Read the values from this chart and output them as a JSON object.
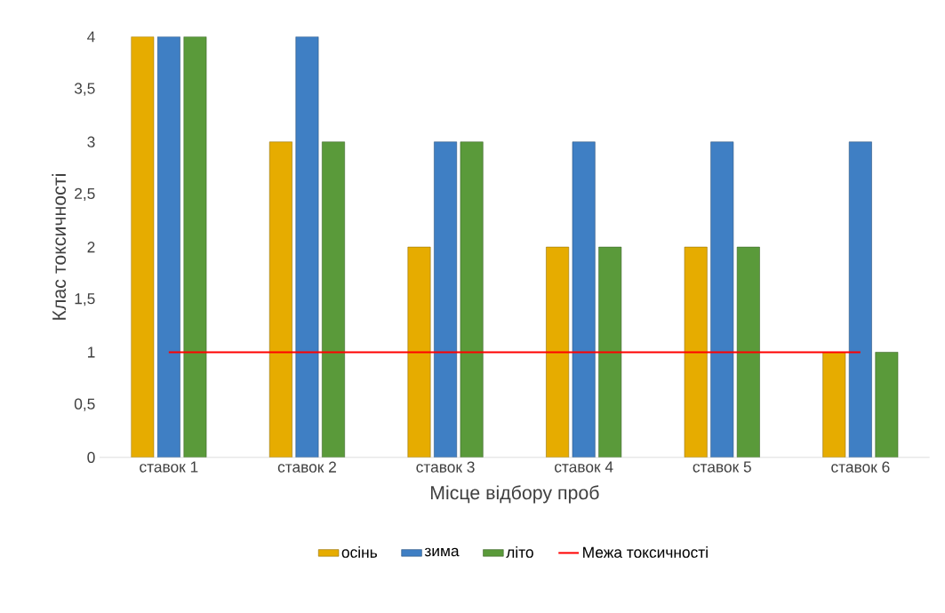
{
  "chart_data": {
    "type": "bar",
    "xlabel": "Місце відбору проб",
    "ylabel": "Клас токсичності",
    "categories": [
      "ставок 1",
      "ставок 2",
      "ставок 3",
      "ставок 4",
      "ставок 5",
      "ставок 6"
    ],
    "series": [
      {
        "name": "осінь",
        "color": "#e6ac00",
        "values": [
          4,
          3,
          2,
          2,
          2,
          1
        ]
      },
      {
        "name": "зима",
        "color": "#3f7fc4",
        "values": [
          4,
          4,
          3,
          3,
          3,
          3
        ]
      },
      {
        "name": "літо",
        "color": "#5a9a3a",
        "values": [
          4,
          3,
          3,
          2,
          2,
          1
        ]
      },
      {
        "name": "Межа токсичності",
        "type": "line",
        "color": "#ff0000",
        "values": [
          1,
          1,
          1,
          1,
          1,
          1
        ]
      }
    ],
    "ylim": [
      0,
      4
    ],
    "yticks": [
      0,
      {
        "value": 0.5,
        "label": "0,5"
      },
      1,
      {
        "value": 1.5,
        "label": "1,5"
      },
      2,
      {
        "value": 2.5,
        "label": "2,5"
      },
      3,
      {
        "value": 3.5,
        "label": "3,5"
      },
      4
    ],
    "legend": "bottom",
    "grid": false
  }
}
